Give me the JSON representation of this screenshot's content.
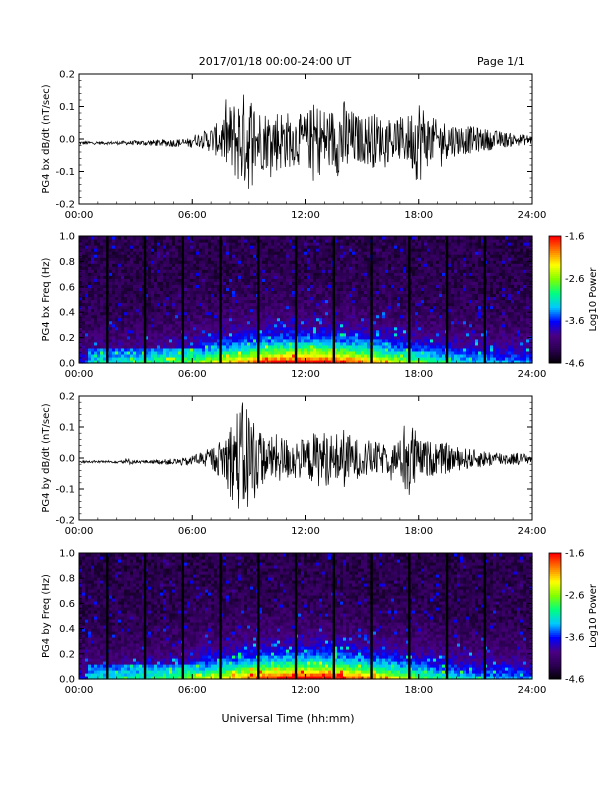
{
  "header": {
    "title": "2017/01/18  00:00-24:00 UT",
    "page": "Page 1/1"
  },
  "footer": {
    "xlabel": "Universal Time (hh:mm)"
  },
  "colors": {
    "trace": "#000000",
    "colorbar": [
      "#000000",
      "#2a0050",
      "#4b0082",
      "#0000ff",
      "#00c8ff",
      "#00ff80",
      "#80ff00",
      "#ffff00",
      "#ff8000",
      "#ff0000"
    ]
  },
  "chart_data": [
    {
      "type": "line",
      "panel": "bx-waveform",
      "ylabel": "PG4 bx dB/dt (nT/sec)",
      "xlim": [
        0,
        24
      ],
      "ylim": [
        -0.2,
        0.2
      ],
      "xticks": [
        "00:00",
        "06:00",
        "12:00",
        "18:00",
        "24:00"
      ],
      "yticks": [
        "-0.2",
        "-0.1",
        "0.0",
        "0.1",
        "0.2"
      ],
      "envelope_x": [
        0,
        2,
        4,
        6,
        6.5,
        7,
        7.5,
        8,
        8.5,
        9,
        9.5,
        10,
        10.5,
        11,
        11.5,
        12,
        12.5,
        13,
        13.5,
        14,
        14.5,
        15,
        15.5,
        16,
        16.5,
        17,
        17.5,
        18,
        18.5,
        19,
        19.5,
        20,
        21,
        22,
        23,
        24
      ],
      "envelope_y": [
        0.005,
        0.005,
        0.01,
        0.015,
        0.025,
        0.04,
        0.06,
        0.11,
        0.14,
        0.16,
        0.1,
        0.09,
        0.1,
        0.09,
        0.08,
        0.08,
        0.12,
        0.1,
        0.1,
        0.13,
        0.09,
        0.07,
        0.09,
        0.07,
        0.07,
        0.07,
        0.08,
        0.14,
        0.08,
        0.06,
        0.06,
        0.05,
        0.04,
        0.03,
        0.02,
        0.015
      ]
    },
    {
      "type": "heatmap",
      "panel": "bx-spectrogram",
      "ylabel": "PG4 bx Freq (Hz)",
      "colorbar_label": "Log10 Power",
      "colorbar_ticks": [
        "-1.6",
        "-2.6",
        "-3.6",
        "-4.6"
      ],
      "xlim": [
        0,
        24
      ],
      "ylim": [
        0,
        1
      ],
      "xticks": [
        "00:00",
        "06:00",
        "12:00",
        "18:00",
        "24:00"
      ],
      "yticks": [
        "0.0",
        "0.2",
        "0.4",
        "0.6",
        "0.8",
        "1.0"
      ],
      "gap_times": [
        1.5,
        3.5,
        5.5,
        7.5,
        9.5,
        11.5,
        13.5,
        15.5,
        17.5,
        19.5,
        21.5
      ]
    },
    {
      "type": "line",
      "panel": "by-waveform",
      "ylabel": "PG4 by dB/dt (nT/sec)",
      "xlim": [
        0,
        24
      ],
      "ylim": [
        -0.2,
        0.2
      ],
      "xticks": [
        "00:00",
        "06:00",
        "12:00",
        "18:00",
        "24:00"
      ],
      "yticks": [
        "-0.2",
        "-0.1",
        "0.0",
        "0.1",
        "0.2"
      ],
      "envelope_x": [
        0,
        2,
        2.5,
        3,
        4,
        6,
        6.5,
        7,
        7.5,
        8,
        8.5,
        9,
        9.5,
        10,
        10.5,
        11,
        11.5,
        12,
        12.5,
        13,
        13.5,
        14,
        14.5,
        15,
        15.5,
        16,
        16.5,
        17,
        17.5,
        18,
        18.5,
        19,
        19.5,
        20,
        21,
        22,
        23,
        24
      ],
      "envelope_y": [
        0.004,
        0.004,
        0.012,
        0.005,
        0.006,
        0.015,
        0.025,
        0.035,
        0.06,
        0.12,
        0.18,
        0.19,
        0.1,
        0.07,
        0.08,
        0.07,
        0.07,
        0.06,
        0.09,
        0.09,
        0.08,
        0.1,
        0.07,
        0.06,
        0.06,
        0.05,
        0.05,
        0.06,
        0.16,
        0.06,
        0.06,
        0.05,
        0.05,
        0.04,
        0.03,
        0.025,
        0.02,
        0.015
      ]
    },
    {
      "type": "heatmap",
      "panel": "by-spectrogram",
      "ylabel": "PG4 by Freq (Hz)",
      "colorbar_label": "Log10 Power",
      "colorbar_ticks": [
        "-1.6",
        "-2.6",
        "-3.6",
        "-4.6"
      ],
      "xlim": [
        0,
        24
      ],
      "ylim": [
        0,
        1
      ],
      "xticks": [
        "00:00",
        "06:00",
        "12:00",
        "18:00",
        "24:00"
      ],
      "yticks": [
        "0.0",
        "0.2",
        "0.4",
        "0.6",
        "0.8",
        "1.0"
      ],
      "gap_times": [
        1.5,
        3.5,
        5.5,
        7.5,
        9.5,
        11.5,
        13.5,
        15.5,
        17.5,
        19.5,
        21.5
      ]
    }
  ]
}
